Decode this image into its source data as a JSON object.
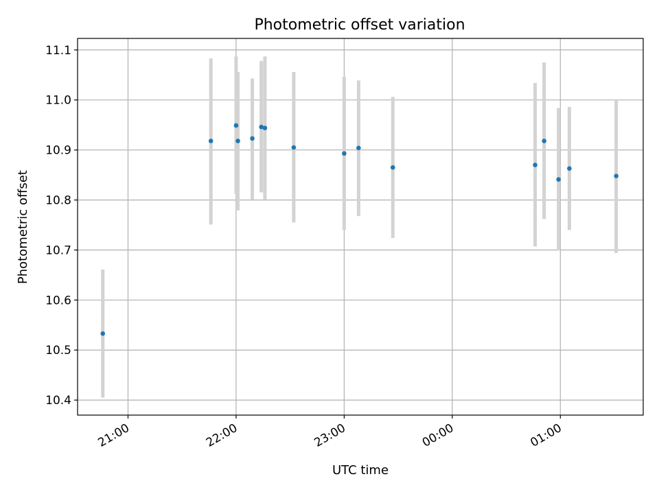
{
  "chart_data": {
    "type": "scatter",
    "title": "Photometric offset variation",
    "xlabel": "UTC time",
    "ylabel": "Photometric offset",
    "xlim": [
      "20:32",
      "01:46"
    ],
    "ylim": [
      10.37,
      11.123
    ],
    "x_ticks": [
      "21:00",
      "22:00",
      "23:00",
      "00:00",
      "01:00"
    ],
    "y_ticks": [
      10.4,
      10.5,
      10.6,
      10.7,
      10.8,
      10.9,
      11.0,
      11.1
    ],
    "grid": true,
    "colors": {
      "point": "#1f77b4",
      "error_bar": "#d3d3d3",
      "grid": "#b0b0b0"
    },
    "points": [
      {
        "x": "20:46",
        "y": 10.533,
        "y_low": 10.405,
        "y_high": 10.661
      },
      {
        "x": "21:46",
        "y": 10.918,
        "y_low": 10.751,
        "y_high": 11.083
      },
      {
        "x": "22:00",
        "y": 10.949,
        "y_low": 10.812,
        "y_high": 11.087
      },
      {
        "x": "22:01",
        "y": 10.918,
        "y_low": 10.779,
        "y_high": 11.056
      },
      {
        "x": "22:09",
        "y": 10.923,
        "y_low": 10.801,
        "y_high": 11.043
      },
      {
        "x": "22:14",
        "y": 10.946,
        "y_low": 10.815,
        "y_high": 11.078
      },
      {
        "x": "22:16",
        "y": 10.944,
        "y_low": 10.801,
        "y_high": 11.087
      },
      {
        "x": "22:32",
        "y": 10.905,
        "y_low": 10.755,
        "y_high": 11.056
      },
      {
        "x": "23:00",
        "y": 10.893,
        "y_low": 10.74,
        "y_high": 11.046
      },
      {
        "x": "23:08",
        "y": 10.904,
        "y_low": 10.768,
        "y_high": 11.039
      },
      {
        "x": "23:27",
        "y": 10.865,
        "y_low": 10.724,
        "y_high": 11.006
      },
      {
        "x": "00:46",
        "y": 10.87,
        "y_low": 10.707,
        "y_high": 11.034
      },
      {
        "x": "00:51",
        "y": 10.918,
        "y_low": 10.762,
        "y_high": 11.075
      },
      {
        "x": "00:59",
        "y": 10.841,
        "y_low": 10.699,
        "y_high": 10.984
      },
      {
        "x": "01:05",
        "y": 10.863,
        "y_low": 10.74,
        "y_high": 10.986
      },
      {
        "x": "01:31",
        "y": 10.848,
        "y_low": 10.694,
        "y_high": 11.0
      }
    ]
  }
}
